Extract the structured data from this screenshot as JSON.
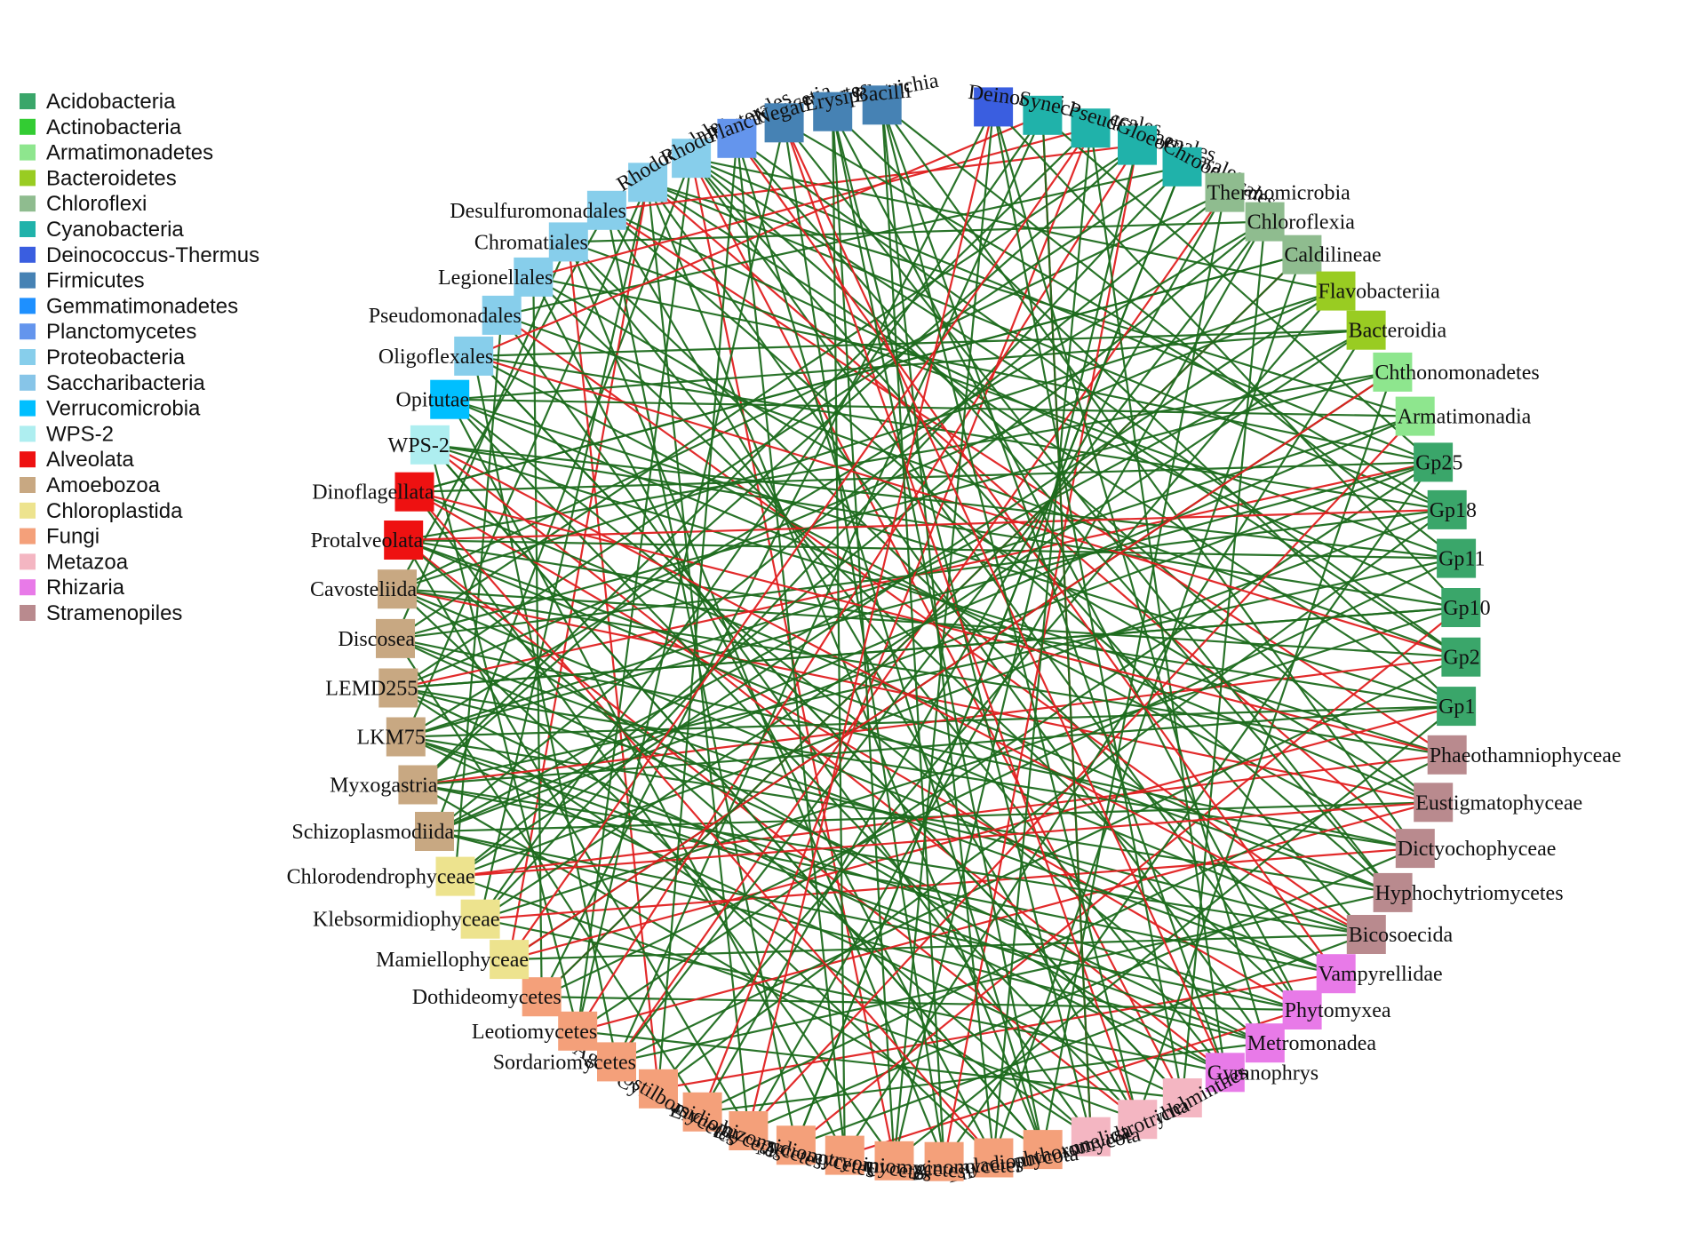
{
  "legend": [
    {
      "name": "Acidobacteria",
      "color": "#3aa66a"
    },
    {
      "name": "Actinobacteria",
      "color": "#33cc33"
    },
    {
      "name": "Armatimonadetes",
      "color": "#8ee68e"
    },
    {
      "name": "Bacteroidetes",
      "color": "#99cc22"
    },
    {
      "name": "Chloroflexi",
      "color": "#8fbc8f"
    },
    {
      "name": "Cyanobacteria",
      "color": "#20b2aa"
    },
    {
      "name": "Deinococcus-Thermus",
      "color": "#3a5ee0"
    },
    {
      "name": "Firmicutes",
      "color": "#4682b4"
    },
    {
      "name": "Gemmatimonadetes",
      "color": "#1e90ff"
    },
    {
      "name": "Planctomycetes",
      "color": "#6495ed"
    },
    {
      "name": "Proteobacteria",
      "color": "#87ceeb"
    },
    {
      "name": "Saccharibacteria",
      "color": "#87c5e8"
    },
    {
      "name": "Verrucomicrobia",
      "color": "#00bfff"
    },
    {
      "name": "WPS-2",
      "color": "#aeeef0"
    },
    {
      "name": "Alveolata",
      "color": "#ee1111"
    },
    {
      "name": "Amoebozoa",
      "color": "#c8a882"
    },
    {
      "name": "Chloroplastida",
      "color": "#ede38e"
    },
    {
      "name": "Fungi",
      "color": "#f4a07a"
    },
    {
      "name": "Metazoa",
      "color": "#f4b6c2"
    },
    {
      "name": "Rhizaria",
      "color": "#e87ae8"
    },
    {
      "name": "Stramenopiles",
      "color": "#b98a8e"
    }
  ],
  "nodes": [
    {
      "label": "Deinococci",
      "group": 6
    },
    {
      "label": "Synechococcales",
      "group": 5
    },
    {
      "label": "Pseudanabaenales",
      "group": 5
    },
    {
      "label": "Gloeobacterales",
      "group": 5
    },
    {
      "label": "Chroococcales",
      "group": 5
    },
    {
      "label": "Thermomicrobia",
      "group": 4
    },
    {
      "label": "Chloroflexia",
      "group": 4
    },
    {
      "label": "Caldilineae",
      "group": 4
    },
    {
      "label": "Flavobacteriia",
      "group": 3
    },
    {
      "label": "Bacteroidia",
      "group": 3
    },
    {
      "label": "Chthonomonadetes",
      "group": 2
    },
    {
      "label": "Armatimonadia",
      "group": 2
    },
    {
      "label": "Gp25",
      "group": 0
    },
    {
      "label": "Gp18",
      "group": 0
    },
    {
      "label": "Gp11",
      "group": 0
    },
    {
      "label": "Gp10",
      "group": 0
    },
    {
      "label": "Gp2",
      "group": 0
    },
    {
      "label": "Gp1",
      "group": 0
    },
    {
      "label": "Phaeothamniophyceae",
      "group": 20
    },
    {
      "label": "Eustigmatophyceae",
      "group": 20
    },
    {
      "label": "Dictyochophyceae",
      "group": 20
    },
    {
      "label": "Hyphochytriomycetes",
      "group": 20
    },
    {
      "label": "Bicosoecida",
      "group": 20
    },
    {
      "label": "Vampyrellidae",
      "group": 19
    },
    {
      "label": "Phytomyxea",
      "group": 19
    },
    {
      "label": "Metromonadea",
      "group": 19
    },
    {
      "label": "Gymnophrys",
      "group": 19
    },
    {
      "label": "Platyhelminthes",
      "group": 18
    },
    {
      "label": "Gastrotricha",
      "group": 18
    },
    {
      "label": "Annelida",
      "group": 18
    },
    {
      "label": "Entomophthoromycota",
      "group": 17
    },
    {
      "label": "Blastocladiomycota",
      "group": 17
    },
    {
      "label": "Ustilaginomycetes",
      "group": 17
    },
    {
      "label": "Pucciniomycetes",
      "group": 17
    },
    {
      "label": "Microbotryomycetes",
      "group": 17
    },
    {
      "label": "Exobasidiomycetes",
      "group": 17
    },
    {
      "label": "Entorrhizomycetes",
      "group": 17
    },
    {
      "label": "Cystobasidiomycetes",
      "group": 17
    },
    {
      "label": "Agaricostilbomycetes",
      "group": 17
    },
    {
      "label": "Sordariomycetes",
      "group": 17
    },
    {
      "label": "Leotiomycetes",
      "group": 17
    },
    {
      "label": "Dothideomycetes",
      "group": 17
    },
    {
      "label": "Mamiellophyceae",
      "group": 16
    },
    {
      "label": "Klebsormidiophyceae",
      "group": 16
    },
    {
      "label": "Chlorodendrophyceae",
      "group": 16
    },
    {
      "label": "Schizoplasmodiida",
      "group": 15
    },
    {
      "label": "Myxogastria",
      "group": 15
    },
    {
      "label": "LKM75",
      "group": 15
    },
    {
      "label": "LEMD255",
      "group": 15
    },
    {
      "label": "Discosea",
      "group": 15
    },
    {
      "label": "Cavosteliida",
      "group": 15
    },
    {
      "label": "Protalveolata",
      "group": 14
    },
    {
      "label": "Dinoflagellata",
      "group": 14
    },
    {
      "label": "WPS-2",
      "group": 13
    },
    {
      "label": "Opitutae",
      "group": 12
    },
    {
      "label": "Oligoflexales",
      "group": 10
    },
    {
      "label": "Pseudomonadales",
      "group": 10
    },
    {
      "label": "Legionellales",
      "group": 10
    },
    {
      "label": "Chromatiales",
      "group": 10
    },
    {
      "label": "Desulfuromonadales",
      "group": 10
    },
    {
      "label": "Rhodocyclales",
      "group": 10
    },
    {
      "label": "Rhodobacterales",
      "group": 10
    },
    {
      "label": "Planctomycetia",
      "group": 9
    },
    {
      "label": "Negativicutes",
      "group": 7
    },
    {
      "label": "Erysipelotrichia",
      "group": 7
    },
    {
      "label": "Bacilli",
      "group": 7
    }
  ],
  "edge_colors": {
    "positive": "#1e6b1e",
    "negative": "#e02020"
  },
  "edges": [
    [
      61,
      12,
      "p"
    ],
    [
      61,
      16,
      "p"
    ],
    [
      61,
      22,
      "p"
    ],
    [
      61,
      24,
      "p"
    ],
    [
      61,
      27,
      "n"
    ],
    [
      61,
      19,
      "p"
    ],
    [
      61,
      40,
      "p"
    ],
    [
      61,
      45,
      "p"
    ],
    [
      61,
      33,
      "n"
    ],
    [
      61,
      8,
      "p"
    ],
    [
      60,
      13,
      "p"
    ],
    [
      60,
      17,
      "p"
    ],
    [
      60,
      25,
      "p"
    ],
    [
      60,
      30,
      "p"
    ],
    [
      60,
      20,
      "n"
    ],
    [
      60,
      43,
      "p"
    ],
    [
      60,
      36,
      "p"
    ],
    [
      60,
      47,
      "p"
    ],
    [
      60,
      11,
      "p"
    ],
    [
      60,
      42,
      "n"
    ],
    [
      59,
      15,
      "p"
    ],
    [
      59,
      21,
      "p"
    ],
    [
      59,
      28,
      "p"
    ],
    [
      59,
      50,
      "p"
    ],
    [
      59,
      35,
      "p"
    ],
    [
      59,
      3,
      "n"
    ],
    [
      59,
      18,
      "n"
    ],
    [
      58,
      14,
      "p"
    ],
    [
      58,
      26,
      "p"
    ],
    [
      58,
      32,
      "p"
    ],
    [
      58,
      49,
      "p"
    ],
    [
      58,
      23,
      "p"
    ],
    [
      58,
      6,
      "p"
    ],
    [
      58,
      38,
      "n"
    ],
    [
      57,
      12,
      "p"
    ],
    [
      57,
      24,
      "p"
    ],
    [
      57,
      41,
      "p"
    ],
    [
      57,
      31,
      "p"
    ],
    [
      57,
      2,
      "n"
    ],
    [
      57,
      19,
      "p"
    ],
    [
      56,
      16,
      "p"
    ],
    [
      56,
      29,
      "p"
    ],
    [
      56,
      44,
      "p"
    ],
    [
      56,
      4,
      "p"
    ],
    [
      56,
      22,
      "n"
    ],
    [
      55,
      13,
      "p"
    ],
    [
      55,
      27,
      "p"
    ],
    [
      55,
      39,
      "p"
    ],
    [
      55,
      1,
      "n"
    ],
    [
      55,
      20,
      "p"
    ],
    [
      54,
      17,
      "p"
    ],
    [
      54,
      25,
      "p"
    ],
    [
      54,
      34,
      "p"
    ],
    [
      54,
      9,
      "p"
    ],
    [
      53,
      15,
      "p"
    ],
    [
      53,
      18,
      "p"
    ],
    [
      53,
      26,
      "n"
    ],
    [
      53,
      40,
      "p"
    ],
    [
      53,
      30,
      "p"
    ],
    [
      52,
      12,
      "p"
    ],
    [
      52,
      21,
      "p"
    ],
    [
      52,
      33,
      "p"
    ],
    [
      52,
      7,
      "p"
    ],
    [
      52,
      24,
      "n"
    ],
    [
      51,
      14,
      "p"
    ],
    [
      51,
      22,
      "p"
    ],
    [
      51,
      36,
      "p"
    ],
    [
      51,
      10,
      "p"
    ],
    [
      51,
      28,
      "n"
    ],
    [
      51,
      17,
      "p"
    ],
    [
      50,
      16,
      "p"
    ],
    [
      50,
      23,
      "p"
    ],
    [
      50,
      31,
      "p"
    ],
    [
      50,
      5,
      "p"
    ],
    [
      50,
      19,
      "n"
    ],
    [
      49,
      13,
      "p"
    ],
    [
      49,
      25,
      "p"
    ],
    [
      49,
      37,
      "p"
    ],
    [
      49,
      3,
      "p"
    ],
    [
      49,
      20,
      "p"
    ],
    [
      48,
      15,
      "p"
    ],
    [
      48,
      22,
      "p"
    ],
    [
      48,
      26,
      "p"
    ],
    [
      48,
      8,
      "p"
    ],
    [
      48,
      29,
      "p"
    ],
    [
      48,
      12,
      "n"
    ],
    [
      47,
      17,
      "p"
    ],
    [
      47,
      24,
      "p"
    ],
    [
      47,
      27,
      "p"
    ],
    [
      47,
      11,
      "p"
    ],
    [
      47,
      21,
      "p"
    ],
    [
      46,
      14,
      "p"
    ],
    [
      46,
      23,
      "p"
    ],
    [
      46,
      30,
      "p"
    ],
    [
      46,
      2,
      "p"
    ],
    [
      46,
      16,
      "n"
    ],
    [
      45,
      12,
      "p"
    ],
    [
      45,
      25,
      "p"
    ],
    [
      45,
      9,
      "p"
    ],
    [
      45,
      19,
      "p"
    ],
    [
      44,
      18,
      "n"
    ],
    [
      44,
      28,
      "p"
    ],
    [
      44,
      6,
      "p"
    ],
    [
      44,
      13,
      "p"
    ],
    [
      43,
      20,
      "n"
    ],
    [
      43,
      26,
      "p"
    ],
    [
      43,
      4,
      "p"
    ],
    [
      43,
      15,
      "p"
    ],
    [
      42,
      22,
      "p"
    ],
    [
      42,
      10,
      "p"
    ],
    [
      42,
      17,
      "n"
    ],
    [
      41,
      24,
      "p"
    ],
    [
      41,
      7,
      "n"
    ],
    [
      41,
      14,
      "p"
    ],
    [
      41,
      0,
      "p"
    ],
    [
      40,
      19,
      "n"
    ],
    [
      40,
      3,
      "n"
    ],
    [
      40,
      12,
      "p"
    ],
    [
      40,
      27,
      "p"
    ],
    [
      39,
      21,
      "p"
    ],
    [
      39,
      5,
      "n"
    ],
    [
      39,
      16,
      "p"
    ],
    [
      39,
      1,
      "p"
    ],
    [
      38,
      23,
      "n"
    ],
    [
      38,
      8,
      "p"
    ],
    [
      38,
      13,
      "p"
    ],
    [
      37,
      25,
      "p"
    ],
    [
      37,
      2,
      "n"
    ],
    [
      37,
      18,
      "p"
    ],
    [
      36,
      20,
      "p"
    ],
    [
      36,
      6,
      "p"
    ],
    [
      36,
      11,
      "n"
    ],
    [
      35,
      22,
      "p"
    ],
    [
      35,
      4,
      "p"
    ],
    [
      35,
      15,
      "n"
    ],
    [
      34,
      24,
      "n"
    ],
    [
      34,
      9,
      "p"
    ],
    [
      34,
      62,
      "p"
    ],
    [
      33,
      0,
      "p"
    ],
    [
      33,
      64,
      "p"
    ],
    [
      33,
      17,
      "p"
    ],
    [
      32,
      3,
      "n"
    ],
    [
      32,
      63,
      "p"
    ],
    [
      32,
      12,
      "p"
    ],
    [
      31,
      7,
      "p"
    ],
    [
      31,
      65,
      "p"
    ],
    [
      31,
      52,
      "n"
    ],
    [
      30,
      5,
      "p"
    ],
    [
      30,
      62,
      "p"
    ],
    [
      30,
      53,
      "p"
    ],
    [
      29,
      1,
      "n"
    ],
    [
      29,
      51,
      "p"
    ],
    [
      29,
      64,
      "p"
    ],
    [
      28,
      10,
      "p"
    ],
    [
      28,
      54,
      "p"
    ],
    [
      28,
      63,
      "n"
    ],
    [
      27,
      6,
      "p"
    ],
    [
      27,
      55,
      "p"
    ],
    [
      26,
      65,
      "p"
    ],
    [
      26,
      50,
      "p"
    ],
    [
      26,
      2,
      "p"
    ],
    [
      25,
      47,
      "p"
    ],
    [
      25,
      0,
      "p"
    ],
    [
      24,
      45,
      "p"
    ],
    [
      24,
      64,
      "p"
    ],
    [
      23,
      49,
      "p"
    ],
    [
      23,
      62,
      "n"
    ],
    [
      22,
      53,
      "n"
    ],
    [
      22,
      46,
      "p"
    ],
    [
      21,
      51,
      "p"
    ],
    [
      21,
      63,
      "p"
    ],
    [
      20,
      48,
      "p"
    ],
    [
      20,
      65,
      "p"
    ],
    [
      19,
      54,
      "p"
    ],
    [
      19,
      44,
      "n"
    ],
    [
      18,
      52,
      "n"
    ],
    [
      18,
      50,
      "p"
    ],
    [
      17,
      46,
      "p"
    ],
    [
      17,
      64,
      "p"
    ],
    [
      16,
      55,
      "n"
    ],
    [
      16,
      62,
      "p"
    ],
    [
      15,
      48,
      "p"
    ],
    [
      15,
      0,
      "p"
    ],
    [
      14,
      53,
      "p"
    ],
    [
      14,
      65,
      "p"
    ],
    [
      13,
      51,
      "n"
    ],
    [
      13,
      63,
      "p"
    ],
    [
      12,
      47,
      "p"
    ],
    [
      12,
      1,
      "p"
    ],
    [
      11,
      45,
      "p"
    ],
    [
      11,
      54,
      "p"
    ],
    [
      10,
      42,
      "n"
    ],
    [
      10,
      49,
      "p"
    ],
    [
      9,
      43,
      "p"
    ],
    [
      9,
      55,
      "p"
    ],
    [
      8,
      44,
      "p"
    ],
    [
      8,
      50,
      "p"
    ],
    [
      7,
      41,
      "p"
    ],
    [
      7,
      52,
      "p"
    ],
    [
      6,
      39,
      "p"
    ],
    [
      6,
      47,
      "p"
    ],
    [
      5,
      37,
      "p"
    ],
    [
      5,
      45,
      "p"
    ],
    [
      4,
      35,
      "p"
    ],
    [
      4,
      48,
      "p"
    ],
    [
      3,
      33,
      "p"
    ],
    [
      3,
      46,
      "p"
    ],
    [
      2,
      31,
      "p"
    ],
    [
      2,
      42,
      "n"
    ],
    [
      1,
      29,
      "p"
    ],
    [
      1,
      43,
      "p"
    ],
    [
      0,
      27,
      "p"
    ],
    [
      0,
      36,
      "n"
    ],
    [
      62,
      38,
      "p"
    ],
    [
      62,
      21,
      "p"
    ],
    [
      63,
      40,
      "p"
    ],
    [
      63,
      26,
      "n"
    ],
    [
      64,
      34,
      "p"
    ],
    [
      64,
      30,
      "p"
    ],
    [
      65,
      32,
      "p"
    ],
    [
      65,
      28,
      "p"
    ]
  ]
}
